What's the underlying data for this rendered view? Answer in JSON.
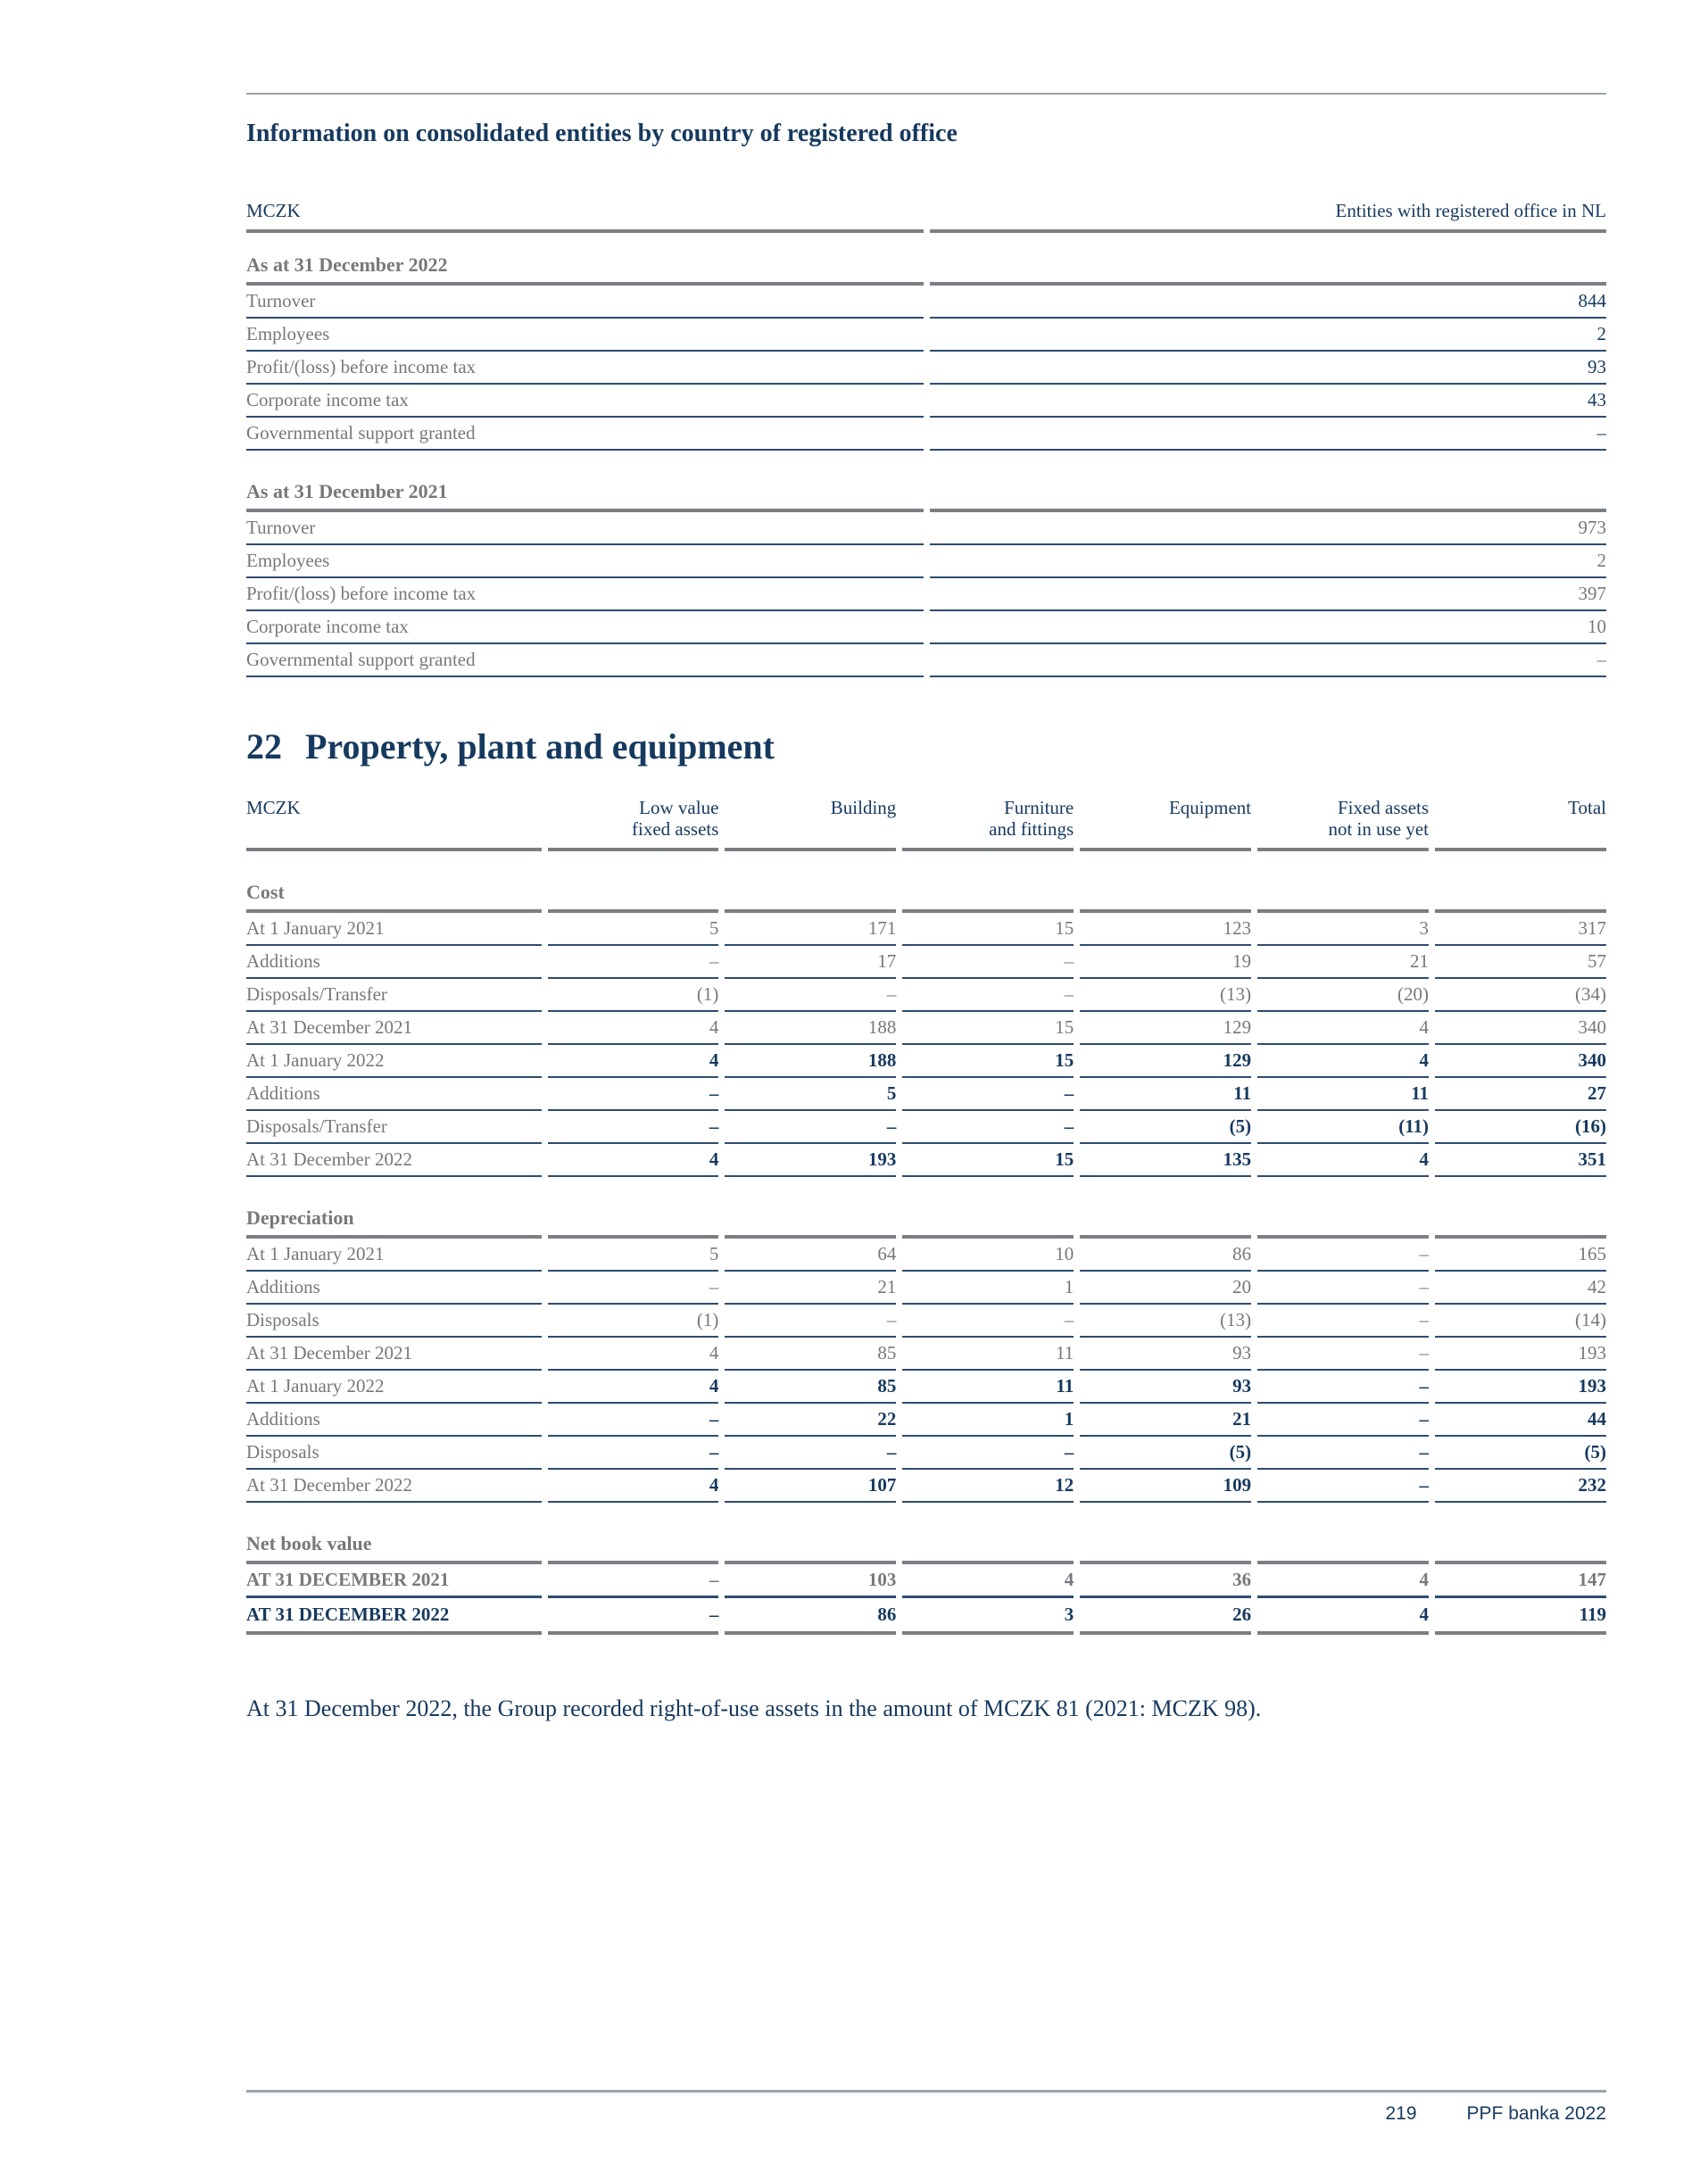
{
  "colors": {
    "navy_text": "#16395e",
    "gray_text": "#76787b",
    "thin_rule": "#2e4c6e",
    "thick_rule": "#7b7f84",
    "light_rule": "#9aa3ab",
    "background": "#ffffff"
  },
  "consolidated": {
    "title": "Information on consolidated entities by country of registered office",
    "unit_label": "MCZK",
    "value_header": "Entities with registered office in NL",
    "blocks": [
      {
        "header": "As at 31 December 2022",
        "rows": [
          {
            "label": "Turnover",
            "values": [
              "844"
            ],
            "style": "accent"
          },
          {
            "label": "Employees",
            "values": [
              "2"
            ],
            "style": "accent"
          },
          {
            "label": "Profit/(loss) before income tax",
            "values": [
              "93"
            ],
            "style": "accent"
          },
          {
            "label": "Corporate income tax",
            "values": [
              "43"
            ],
            "style": "accent"
          },
          {
            "label": "Governmental support granted",
            "values": [
              "–"
            ],
            "style": "accent"
          }
        ]
      },
      {
        "header": "As at 31 December 2021",
        "rows": [
          {
            "label": "Turnover",
            "values": [
              "973"
            ],
            "style": "muted"
          },
          {
            "label": "Employees",
            "values": [
              "2"
            ],
            "style": "muted"
          },
          {
            "label": "Profit/(loss) before income tax",
            "values": [
              "397"
            ],
            "style": "muted"
          },
          {
            "label": "Corporate income tax",
            "values": [
              "10"
            ],
            "style": "muted"
          },
          {
            "label": "Governmental support granted",
            "values": [
              "–"
            ],
            "style": "muted"
          }
        ]
      }
    ]
  },
  "ppe": {
    "number": "22",
    "title": "Property, plant and equipment",
    "unit_label": "MCZK",
    "col_headers": [
      "Low value\nfixed assets",
      "Building",
      "Furniture\nand fittings",
      "Equipment",
      "Fixed assets\nnot in use yet",
      "Total"
    ],
    "groups": [
      {
        "name": "Cost",
        "rows": [
          {
            "label": "At 1 January 2021",
            "values": [
              "5",
              "171",
              "15",
              "123",
              "3",
              "317"
            ],
            "style": "muted"
          },
          {
            "label": "Additions",
            "values": [
              "–",
              "17",
              "–",
              "19",
              "21",
              "57"
            ],
            "style": "muted"
          },
          {
            "label": "Disposals/Transfer",
            "values": [
              "(1)",
              "–",
              "–",
              "(13)",
              "(20)",
              "(34)"
            ],
            "style": "muted"
          },
          {
            "label": "At 31 December 2021",
            "values": [
              "4",
              "188",
              "15",
              "129",
              "4",
              "340"
            ],
            "style": "muted"
          },
          {
            "label": "At 1 January 2022",
            "values": [
              "4",
              "188",
              "15",
              "129",
              "4",
              "340"
            ],
            "style": "strong"
          },
          {
            "label": "Additions",
            "values": [
              "–",
              "5",
              "–",
              "11",
              "11",
              "27"
            ],
            "style": "strong"
          },
          {
            "label": "Disposals/Transfer",
            "values": [
              "–",
              "–",
              "–",
              "(5)",
              "(11)",
              "(16)"
            ],
            "style": "strong"
          },
          {
            "label": "At 31 December 2022",
            "values": [
              "4",
              "193",
              "15",
              "135",
              "4",
              "351"
            ],
            "style": "strong"
          }
        ]
      },
      {
        "name": "Depreciation",
        "rows": [
          {
            "label": "At 1 January 2021",
            "values": [
              "5",
              "64",
              "10",
              "86",
              "–",
              "165"
            ],
            "style": "muted"
          },
          {
            "label": "Additions",
            "values": [
              "–",
              "21",
              "1",
              "20",
              "–",
              "42"
            ],
            "style": "muted"
          },
          {
            "label": "Disposals",
            "values": [
              "(1)",
              "–",
              "–",
              "(13)",
              "–",
              "(14)"
            ],
            "style": "muted"
          },
          {
            "label": "At 31 December 2021",
            "values": [
              "4",
              "85",
              "11",
              "93",
              "–",
              "193"
            ],
            "style": "muted"
          },
          {
            "label": "At 1 January 2022",
            "values": [
              "4",
              "85",
              "11",
              "93",
              "–",
              "193"
            ],
            "style": "strong"
          },
          {
            "label": "Additions",
            "values": [
              "–",
              "22",
              "1",
              "21",
              "–",
              "44"
            ],
            "style": "strong"
          },
          {
            "label": "Disposals",
            "values": [
              "–",
              "–",
              "–",
              "(5)",
              "–",
              "(5)"
            ],
            "style": "strong"
          },
          {
            "label": "At 31 December 2022",
            "values": [
              "4",
              "107",
              "12",
              "109",
              "–",
              "232"
            ],
            "style": "strong"
          }
        ]
      },
      {
        "name": "Net book value",
        "rows": [
          {
            "label": "AT 31 DECEMBER 2021",
            "values": [
              "–",
              "103",
              "4",
              "36",
              "4",
              "147"
            ],
            "style": "muted-bold"
          },
          {
            "label": "AT 31 DECEMBER 2022",
            "values": [
              "–",
              "86",
              "3",
              "26",
              "4",
              "119"
            ],
            "style": "strong-caps last"
          }
        ]
      }
    ],
    "note": "At 31 December 2022, the Group recorded right-of-use assets in the amount of MCZK 81 (2021: MCZK 98)."
  },
  "footer": {
    "page_number": "219",
    "doc_label": "PPF banka 2022"
  }
}
